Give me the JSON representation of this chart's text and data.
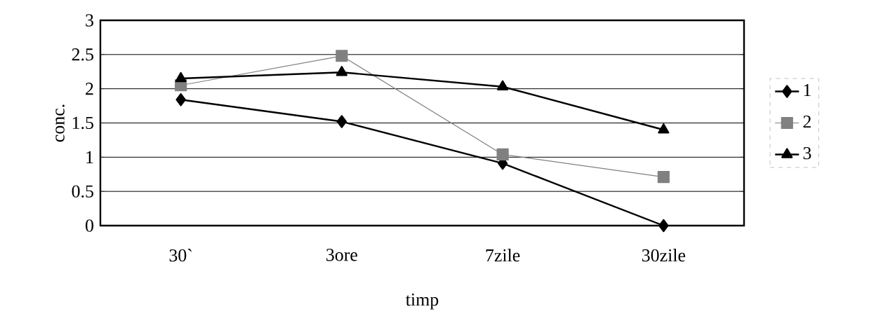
{
  "chart_data": {
    "type": "line",
    "xlabel": "timp",
    "ylabel": "conc.",
    "categories": [
      "30`",
      "3ore",
      "7zile",
      "30zile"
    ],
    "series": [
      {
        "name": "1",
        "color": "#000000",
        "marker": "diamond",
        "values": [
          1.84,
          1.52,
          0.91,
          0
        ]
      },
      {
        "name": "2",
        "color": "#808080",
        "marker": "square",
        "values": [
          2.05,
          2.48,
          1.04,
          0.71
        ]
      },
      {
        "name": "3",
        "color": "#000000",
        "marker": "triangle",
        "values": [
          2.15,
          2.24,
          2.03,
          1.4
        ]
      }
    ],
    "ylim": [
      0,
      3
    ],
    "yticks": [
      0,
      0.5,
      1,
      1.5,
      2,
      2.5,
      3
    ],
    "grid": "y",
    "legend": "right"
  }
}
